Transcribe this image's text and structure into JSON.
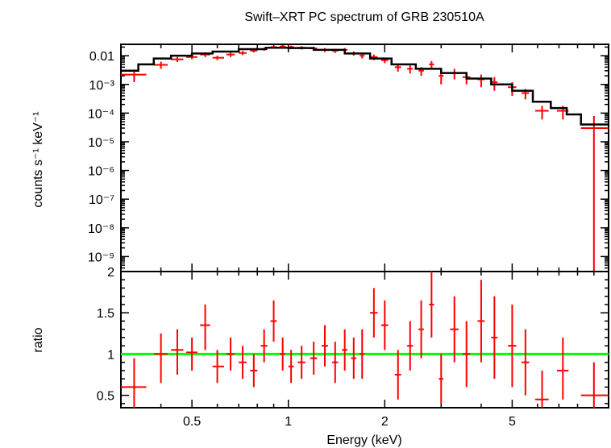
{
  "chart_data": {
    "type": "scatter",
    "title": "Swift–XRT PC spectrum of GRB 230510A",
    "xlabel": "Energy (keV)",
    "x_scale": "log",
    "xlim": [
      0.3,
      10
    ],
    "x_ticks": [
      {
        "value": 0.5,
        "label": "0.5"
      },
      {
        "value": 1,
        "label": "1"
      },
      {
        "value": 2,
        "label": "2"
      },
      {
        "value": 5,
        "label": "5"
      }
    ],
    "colors": {
      "data": "#ff0000",
      "model": "#000000",
      "unity": "#00ff00"
    },
    "panels": [
      {
        "id": "spectrum",
        "ylabel": "counts s⁻¹ keV⁻¹",
        "y_scale": "log",
        "ylim": [
          3e-10,
          0.025
        ],
        "y_ticks": [
          {
            "value": 0.01,
            "label": "0.01"
          },
          {
            "value": 0.001,
            "label": "10⁻³"
          },
          {
            "value": 0.0001,
            "label": "10⁻⁴"
          },
          {
            "value": 1e-05,
            "label": "10⁻⁵"
          },
          {
            "value": 1e-06,
            "label": "10⁻⁶"
          },
          {
            "value": 1e-07,
            "label": "10⁻⁷"
          },
          {
            "value": 1e-08,
            "label": "10⁻⁸"
          },
          {
            "value": 1e-09,
            "label": "10⁻⁹"
          }
        ],
        "series": [
          {
            "kind": "data",
            "points": [
              {
                "x": 0.33,
                "y": 0.0022,
                "xlo": 0.3,
                "xhi": 0.36,
                "ylo": 0.0012,
                "yhi": 0.0033
              },
              {
                "x": 0.4,
                "y": 0.0048,
                "xlo": 0.38,
                "xhi": 0.42,
                "ylo": 0.0035,
                "yhi": 0.0062
              },
              {
                "x": 0.45,
                "y": 0.0075,
                "xlo": 0.43,
                "xhi": 0.47,
                "ylo": 0.006,
                "yhi": 0.009
              },
              {
                "x": 0.5,
                "y": 0.009,
                "xlo": 0.48,
                "xhi": 0.52,
                "ylo": 0.0075,
                "yhi": 0.0105
              },
              {
                "x": 0.55,
                "y": 0.011,
                "xlo": 0.53,
                "xhi": 0.57,
                "ylo": 0.009,
                "yhi": 0.013
              },
              {
                "x": 0.6,
                "y": 0.0085,
                "xlo": 0.58,
                "xhi": 0.63,
                "ylo": 0.007,
                "yhi": 0.01
              },
              {
                "x": 0.66,
                "y": 0.011,
                "xlo": 0.64,
                "xhi": 0.68,
                "ylo": 0.009,
                "yhi": 0.013
              },
              {
                "x": 0.72,
                "y": 0.0125,
                "xlo": 0.7,
                "xhi": 0.74,
                "ylo": 0.0105,
                "yhi": 0.0145
              },
              {
                "x": 0.78,
                "y": 0.015,
                "xlo": 0.76,
                "xhi": 0.8,
                "ylo": 0.013,
                "yhi": 0.017
              },
              {
                "x": 0.84,
                "y": 0.017,
                "xlo": 0.82,
                "xhi": 0.86,
                "ylo": 0.015,
                "yhi": 0.019
              },
              {
                "x": 0.9,
                "y": 0.02,
                "xlo": 0.88,
                "xhi": 0.92,
                "ylo": 0.0175,
                "yhi": 0.0225
              },
              {
                "x": 0.96,
                "y": 0.021,
                "xlo": 0.94,
                "xhi": 0.98,
                "ylo": 0.0185,
                "yhi": 0.0235
              },
              {
                "x": 1.02,
                "y": 0.02,
                "xlo": 1.0,
                "xhi": 1.04,
                "ylo": 0.0175,
                "yhi": 0.0225
              },
              {
                "x": 1.1,
                "y": 0.019,
                "xlo": 1.07,
                "xhi": 1.13,
                "ylo": 0.0165,
                "yhi": 0.0215
              },
              {
                "x": 1.2,
                "y": 0.018,
                "xlo": 1.17,
                "xhi": 1.23,
                "ylo": 0.0155,
                "yhi": 0.0205
              },
              {
                "x": 1.3,
                "y": 0.016,
                "xlo": 1.27,
                "xhi": 1.33,
                "ylo": 0.0135,
                "yhi": 0.0185
              },
              {
                "x": 1.4,
                "y": 0.015,
                "xlo": 1.37,
                "xhi": 1.43,
                "ylo": 0.0125,
                "yhi": 0.0175
              },
              {
                "x": 1.5,
                "y": 0.016,
                "xlo": 1.47,
                "xhi": 1.53,
                "ylo": 0.0135,
                "yhi": 0.0185
              },
              {
                "x": 1.6,
                "y": 0.012,
                "xlo": 1.57,
                "xhi": 1.63,
                "ylo": 0.01,
                "yhi": 0.014
              },
              {
                "x": 1.7,
                "y": 0.01,
                "xlo": 1.67,
                "xhi": 1.73,
                "ylo": 0.008,
                "yhi": 0.012
              },
              {
                "x": 1.85,
                "y": 0.009,
                "xlo": 1.8,
                "xhi": 1.9,
                "ylo": 0.007,
                "yhi": 0.011
              },
              {
                "x": 2.0,
                "y": 0.007,
                "xlo": 1.95,
                "xhi": 2.05,
                "ylo": 0.0055,
                "yhi": 0.0085
              },
              {
                "x": 2.2,
                "y": 0.004,
                "xlo": 2.15,
                "xhi": 2.25,
                "ylo": 0.0028,
                "yhi": 0.0052
              },
              {
                "x": 2.4,
                "y": 0.0035,
                "xlo": 2.35,
                "xhi": 2.45,
                "ylo": 0.0024,
                "yhi": 0.0046
              },
              {
                "x": 2.6,
                "y": 0.003,
                "xlo": 2.55,
                "xhi": 2.65,
                "ylo": 0.002,
                "yhi": 0.004
              },
              {
                "x": 2.8,
                "y": 0.005,
                "xlo": 2.75,
                "xhi": 2.85,
                "ylo": 0.0035,
                "yhi": 0.0065
              },
              {
                "x": 3.0,
                "y": 0.002,
                "xlo": 2.95,
                "xhi": 3.05,
                "ylo": 0.001,
                "yhi": 0.003
              },
              {
                "x": 3.3,
                "y": 0.0025,
                "xlo": 3.2,
                "xhi": 3.4,
                "ylo": 0.0015,
                "yhi": 0.0035
              },
              {
                "x": 3.6,
                "y": 0.0018,
                "xlo": 3.5,
                "xhi": 3.7,
                "ylo": 0.001,
                "yhi": 0.0026
              },
              {
                "x": 4.0,
                "y": 0.0015,
                "xlo": 3.9,
                "xhi": 4.1,
                "ylo": 0.0008,
                "yhi": 0.0022
              },
              {
                "x": 4.4,
                "y": 0.0012,
                "xlo": 4.3,
                "xhi": 4.5,
                "ylo": 0.0006,
                "yhi": 0.0018
              },
              {
                "x": 5.0,
                "y": 0.0008,
                "xlo": 4.85,
                "xhi": 5.15,
                "ylo": 0.0004,
                "yhi": 0.0012
              },
              {
                "x": 5.5,
                "y": 0.0005,
                "xlo": 5.35,
                "xhi": 5.65,
                "ylo": 0.0003,
                "yhi": 0.0007
              },
              {
                "x": 6.2,
                "y": 0.00012,
                "xlo": 5.9,
                "xhi": 6.5,
                "ylo": 6e-05,
                "yhi": 0.00018
              },
              {
                "x": 7.2,
                "y": 0.00012,
                "xlo": 6.9,
                "xhi": 7.5,
                "ylo": 6e-05,
                "yhi": 0.00018
              },
              {
                "x": 9.0,
                "y": 3e-05,
                "xlo": 8.2,
                "xhi": 10.0,
                "ylo": 3e-10,
                "yhi": 8e-05
              }
            ]
          },
          {
            "kind": "model",
            "steps": [
              {
                "x0": 0.3,
                "x1": 0.34,
                "y": 0.003
              },
              {
                "x0": 0.34,
                "x1": 0.38,
                "y": 0.005
              },
              {
                "x0": 0.38,
                "x1": 0.43,
                "y": 0.008
              },
              {
                "x0": 0.43,
                "x1": 0.5,
                "y": 0.01
              },
              {
                "x0": 0.5,
                "x1": 0.58,
                "y": 0.012
              },
              {
                "x0": 0.58,
                "x1": 0.7,
                "y": 0.014
              },
              {
                "x0": 0.7,
                "x1": 0.85,
                "y": 0.017
              },
              {
                "x0": 0.85,
                "x1": 1.0,
                "y": 0.019
              },
              {
                "x0": 1.0,
                "x1": 1.2,
                "y": 0.0185
              },
              {
                "x0": 1.2,
                "x1": 1.5,
                "y": 0.016
              },
              {
                "x0": 1.5,
                "x1": 1.8,
                "y": 0.012
              },
              {
                "x0": 1.8,
                "x1": 2.1,
                "y": 0.008
              },
              {
                "x0": 2.1,
                "x1": 2.5,
                "y": 0.005
              },
              {
                "x0": 2.5,
                "x1": 3.0,
                "y": 0.0035
              },
              {
                "x0": 3.0,
                "x1": 3.6,
                "y": 0.0025
              },
              {
                "x0": 3.6,
                "x1": 4.3,
                "y": 0.0016
              },
              {
                "x0": 4.3,
                "x1": 5.0,
                "y": 0.001
              },
              {
                "x0": 5.0,
                "x1": 5.8,
                "y": 0.0006
              },
              {
                "x0": 5.8,
                "x1": 6.6,
                "y": 0.00025
              },
              {
                "x0": 6.6,
                "x1": 7.4,
                "y": 0.00015
              },
              {
                "x0": 7.4,
                "x1": 8.2,
                "y": 9e-05
              },
              {
                "x0": 8.2,
                "x1": 10.0,
                "y": 4e-05
              }
            ]
          }
        ]
      },
      {
        "id": "ratio",
        "ylabel": "ratio",
        "y_scale": "linear",
        "ylim": [
          0.35,
          2.0
        ],
        "y_ticks": [
          {
            "value": 0.5,
            "label": "0.5"
          },
          {
            "value": 1,
            "label": "1"
          },
          {
            "value": 1.5,
            "label": "1.5"
          },
          {
            "value": 2,
            "label": "2"
          }
        ],
        "reference_line": 1,
        "series": [
          {
            "kind": "data",
            "points": [
              {
                "x": 0.33,
                "y": 0.6,
                "xlo": 0.3,
                "xhi": 0.36,
                "ylo": 0.35,
                "yhi": 0.95
              },
              {
                "x": 0.4,
                "y": 1.0,
                "xlo": 0.38,
                "xhi": 0.42,
                "ylo": 0.65,
                "yhi": 1.25
              },
              {
                "x": 0.45,
                "y": 1.05,
                "xlo": 0.43,
                "xhi": 0.47,
                "ylo": 0.75,
                "yhi": 1.3
              },
              {
                "x": 0.5,
                "y": 1.02,
                "xlo": 0.48,
                "xhi": 0.52,
                "ylo": 0.8,
                "yhi": 1.2
              },
              {
                "x": 0.55,
                "y": 1.35,
                "xlo": 0.53,
                "xhi": 0.57,
                "ylo": 1.05,
                "yhi": 1.6
              },
              {
                "x": 0.6,
                "y": 0.85,
                "xlo": 0.58,
                "xhi": 0.63,
                "ylo": 0.65,
                "yhi": 1.05
              },
              {
                "x": 0.66,
                "y": 1.0,
                "xlo": 0.64,
                "xhi": 0.68,
                "ylo": 0.8,
                "yhi": 1.2
              },
              {
                "x": 0.72,
                "y": 0.9,
                "xlo": 0.7,
                "xhi": 0.74,
                "ylo": 0.7,
                "yhi": 1.1
              },
              {
                "x": 0.78,
                "y": 0.8,
                "xlo": 0.76,
                "xhi": 0.8,
                "ylo": 0.6,
                "yhi": 1.0
              },
              {
                "x": 0.84,
                "y": 1.1,
                "xlo": 0.82,
                "xhi": 0.86,
                "ylo": 0.9,
                "yhi": 1.3
              },
              {
                "x": 0.9,
                "y": 1.4,
                "xlo": 0.88,
                "xhi": 0.92,
                "ylo": 1.15,
                "yhi": 1.65
              },
              {
                "x": 0.96,
                "y": 1.0,
                "xlo": 0.94,
                "xhi": 0.98,
                "ylo": 0.8,
                "yhi": 1.2
              },
              {
                "x": 1.02,
                "y": 0.85,
                "xlo": 1.0,
                "xhi": 1.04,
                "ylo": 0.65,
                "yhi": 1.05
              },
              {
                "x": 1.1,
                "y": 0.9,
                "xlo": 1.07,
                "xhi": 1.13,
                "ylo": 0.7,
                "yhi": 1.1
              },
              {
                "x": 1.2,
                "y": 0.95,
                "xlo": 1.17,
                "xhi": 1.23,
                "ylo": 0.75,
                "yhi": 1.15
              },
              {
                "x": 1.3,
                "y": 1.1,
                "xlo": 1.27,
                "xhi": 1.33,
                "ylo": 0.85,
                "yhi": 1.35
              },
              {
                "x": 1.4,
                "y": 0.9,
                "xlo": 1.37,
                "xhi": 1.43,
                "ylo": 0.65,
                "yhi": 1.15
              },
              {
                "x": 1.5,
                "y": 1.05,
                "xlo": 1.47,
                "xhi": 1.53,
                "ylo": 0.8,
                "yhi": 1.3
              },
              {
                "x": 1.6,
                "y": 0.95,
                "xlo": 1.57,
                "xhi": 1.63,
                "ylo": 0.7,
                "yhi": 1.2
              },
              {
                "x": 1.7,
                "y": 1.0,
                "xlo": 1.67,
                "xhi": 1.73,
                "ylo": 0.7,
                "yhi": 1.3
              },
              {
                "x": 1.85,
                "y": 1.5,
                "xlo": 1.8,
                "xhi": 1.9,
                "ylo": 1.2,
                "yhi": 1.8
              },
              {
                "x": 2.0,
                "y": 1.35,
                "xlo": 1.95,
                "xhi": 2.05,
                "ylo": 1.05,
                "yhi": 1.65
              },
              {
                "x": 2.2,
                "y": 0.75,
                "xlo": 2.15,
                "xhi": 2.25,
                "ylo": 0.45,
                "yhi": 1.05
              },
              {
                "x": 2.4,
                "y": 1.1,
                "xlo": 2.35,
                "xhi": 2.45,
                "ylo": 0.8,
                "yhi": 1.4
              },
              {
                "x": 2.6,
                "y": 1.3,
                "xlo": 2.55,
                "xhi": 2.65,
                "ylo": 0.95,
                "yhi": 1.65
              },
              {
                "x": 2.8,
                "y": 1.6,
                "xlo": 2.75,
                "xhi": 2.85,
                "ylo": 1.2,
                "yhi": 2.0
              },
              {
                "x": 3.0,
                "y": 0.7,
                "xlo": 2.95,
                "xhi": 3.05,
                "ylo": 0.4,
                "yhi": 1.0
              },
              {
                "x": 3.3,
                "y": 1.3,
                "xlo": 3.2,
                "xhi": 3.4,
                "ylo": 0.9,
                "yhi": 1.7
              },
              {
                "x": 3.6,
                "y": 1.0,
                "xlo": 3.5,
                "xhi": 3.7,
                "ylo": 0.6,
                "yhi": 1.4
              },
              {
                "x": 4.0,
                "y": 1.4,
                "xlo": 3.9,
                "xhi": 4.1,
                "ylo": 0.9,
                "yhi": 1.9
              },
              {
                "x": 4.4,
                "y": 1.2,
                "xlo": 4.3,
                "xhi": 4.5,
                "ylo": 0.7,
                "yhi": 1.7
              },
              {
                "x": 5.0,
                "y": 1.1,
                "xlo": 4.85,
                "xhi": 5.15,
                "ylo": 0.6,
                "yhi": 1.6
              },
              {
                "x": 5.5,
                "y": 0.9,
                "xlo": 5.35,
                "xhi": 5.65,
                "ylo": 0.5,
                "yhi": 1.3
              },
              {
                "x": 6.2,
                "y": 0.45,
                "xlo": 5.9,
                "xhi": 6.5,
                "ylo": 0.35,
                "yhi": 0.8
              },
              {
                "x": 7.2,
                "y": 0.8,
                "xlo": 6.9,
                "xhi": 7.5,
                "ylo": 0.45,
                "yhi": 1.2
              },
              {
                "x": 9.0,
                "y": 0.5,
                "xlo": 8.2,
                "xhi": 10.0,
                "ylo": 0.35,
                "yhi": 0.9
              }
            ]
          }
        ]
      }
    ]
  }
}
